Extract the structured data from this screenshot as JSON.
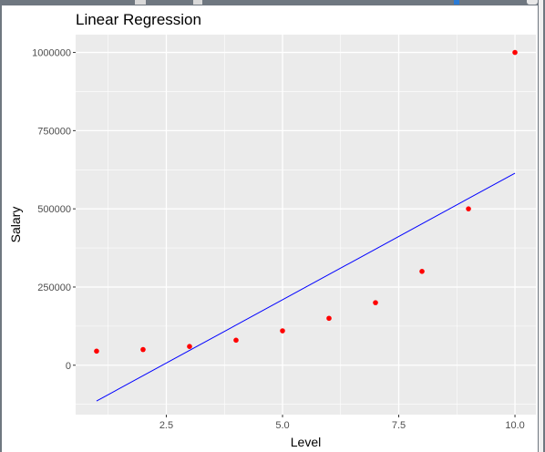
{
  "chart_data": {
    "type": "scatter",
    "title": "Linear Regression",
    "xlabel": "Level",
    "ylabel": "Salary",
    "xlim": [
      0.55,
      10.45
    ],
    "ylim": [
      -158000,
      1057000
    ],
    "x_ticks": [
      2.5,
      5.0,
      7.5,
      10.0
    ],
    "x_tick_labels": [
      "2.5",
      "5.0",
      "7.5",
      "10.0"
    ],
    "y_ticks": [
      0,
      250000,
      500000,
      750000,
      1000000
    ],
    "y_tick_labels": [
      "0",
      "250000",
      "500000",
      "750000",
      "1000000"
    ],
    "grid": true,
    "points": {
      "x": [
        1,
        2,
        3,
        4,
        5,
        6,
        7,
        8,
        9,
        10
      ],
      "y": [
        45000,
        50000,
        60000,
        80000,
        110000,
        150000,
        200000,
        300000,
        500000,
        1000000
      ],
      "color": "#ff0000"
    },
    "fit_line": {
      "x": [
        1,
        10
      ],
      "y": [
        -114455,
        614000
      ],
      "color": "#0000ff"
    },
    "panel_background": "#ebebeb",
    "grid_color": "#ffffff"
  }
}
